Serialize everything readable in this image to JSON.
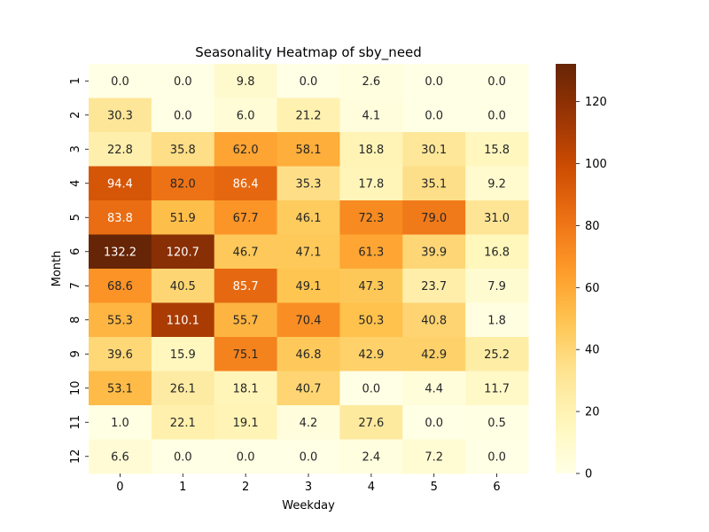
{
  "chart_data": {
    "type": "heatmap",
    "title": "Seasonality Heatmap of sby_need",
    "xlabel": "Weekday",
    "ylabel": "Month",
    "x_categories": [
      "0",
      "1",
      "2",
      "3",
      "4",
      "5",
      "6"
    ],
    "y_categories": [
      "1",
      "2",
      "3",
      "4",
      "5",
      "6",
      "7",
      "8",
      "9",
      "10",
      "11",
      "12"
    ],
    "values": [
      [
        0.0,
        0.0,
        9.8,
        0.0,
        2.6,
        0.0,
        0.0
      ],
      [
        30.3,
        0.0,
        6.0,
        21.2,
        4.1,
        0.0,
        0.0
      ],
      [
        22.8,
        35.8,
        62.0,
        58.1,
        18.8,
        30.1,
        15.8
      ],
      [
        94.4,
        82.0,
        86.4,
        35.3,
        17.8,
        35.1,
        9.2
      ],
      [
        83.8,
        51.9,
        67.7,
        46.1,
        72.3,
        79.0,
        31.0
      ],
      [
        132.2,
        120.7,
        46.7,
        47.1,
        61.3,
        39.9,
        16.8
      ],
      [
        68.6,
        40.5,
        85.7,
        49.1,
        47.3,
        23.7,
        7.9
      ],
      [
        55.3,
        110.1,
        55.7,
        70.4,
        50.3,
        40.8,
        1.8
      ],
      [
        39.6,
        15.9,
        75.1,
        46.8,
        42.9,
        42.9,
        25.2
      ],
      [
        53.1,
        26.1,
        18.1,
        40.7,
        0.0,
        4.4,
        11.7
      ],
      [
        1.0,
        22.1,
        19.1,
        4.2,
        27.6,
        0.0,
        0.5
      ],
      [
        6.6,
        0.0,
        0.0,
        0.0,
        2.4,
        7.2,
        0.0
      ]
    ],
    "value_format": "0.0",
    "colormap": "YlOrBr",
    "colorbar": {
      "min": 0,
      "max": 132.2,
      "ticks": [
        0,
        20,
        40,
        60,
        80,
        100,
        120
      ]
    },
    "grid": false,
    "legend": "none"
  }
}
